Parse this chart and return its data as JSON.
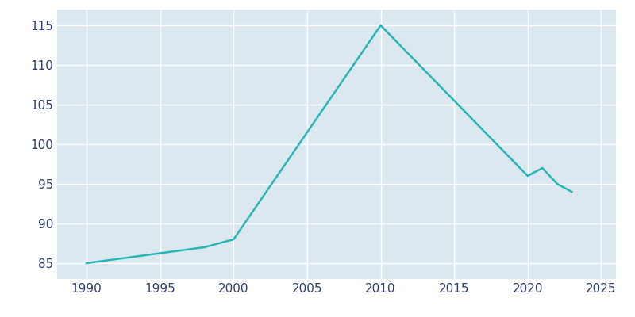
{
  "years": [
    1990,
    1998,
    2000,
    2010,
    2020,
    2021,
    2022,
    2023
  ],
  "population": [
    85,
    87,
    88,
    115,
    96,
    97,
    95,
    94
  ],
  "line_color": "#2ab5b5",
  "bg_color": "#dce8f0",
  "fig_bg_color": "#ffffff",
  "grid_color": "#ffffff",
  "text_color": "#2e3f6e",
  "xlim": [
    1988,
    2026
  ],
  "ylim": [
    83,
    117
  ],
  "xticks": [
    1990,
    1995,
    2000,
    2005,
    2010,
    2015,
    2020,
    2025
  ],
  "yticks": [
    85,
    90,
    95,
    100,
    105,
    110,
    115
  ],
  "linewidth": 1.8,
  "figsize": [
    8.0,
    4.0
  ],
  "dpi": 100
}
